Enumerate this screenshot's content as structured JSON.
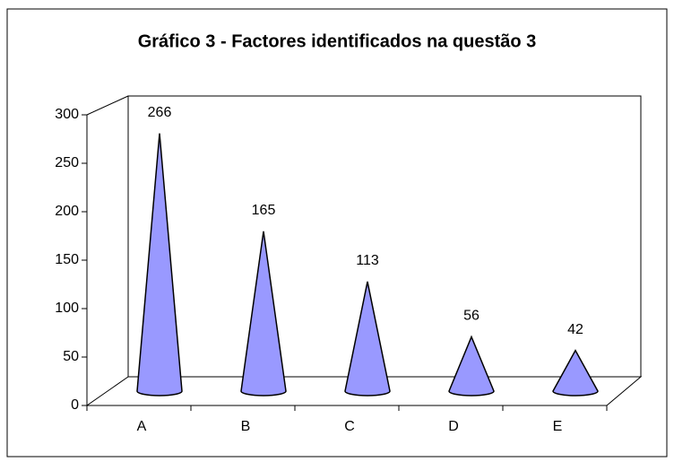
{
  "chart_data": {
    "type": "cone",
    "title": "Gráfico 3 - Factores identificados na questão 3",
    "categories": [
      "A",
      "B",
      "C",
      "D",
      "E"
    ],
    "values": [
      266,
      165,
      113,
      56,
      42
    ],
    "color": "#9999ff",
    "ylim": [
      0,
      300
    ],
    "yticks": [
      0,
      50,
      100,
      150,
      200,
      250,
      300
    ],
    "grid": false
  }
}
